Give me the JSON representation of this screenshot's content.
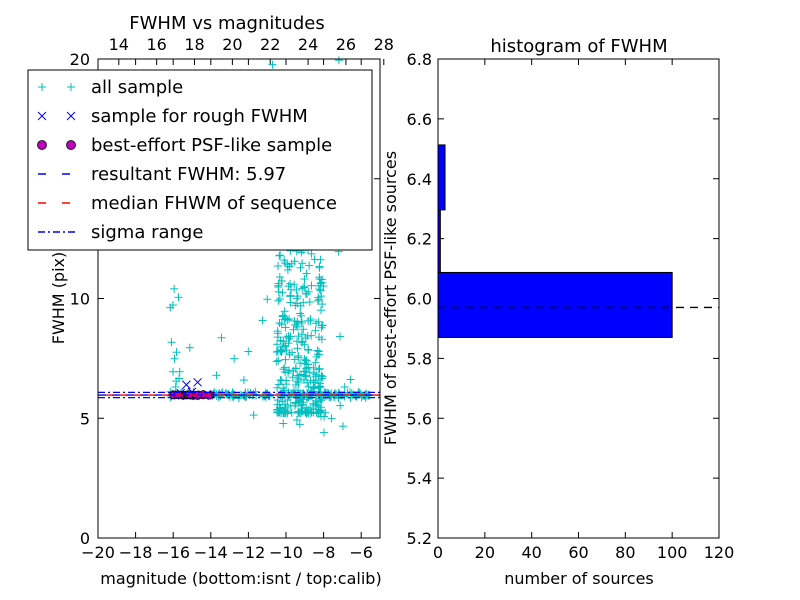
{
  "chart_data": [
    {
      "type": "scatter",
      "title": "FWHM vs magnitudes",
      "xlabel": "magnitude (bottom:isnt / top:calib)",
      "ylabel": "FWHM (pix)",
      "xlim": [
        -20,
        -5
      ],
      "ylim": [
        0,
        20
      ],
      "x_ticks": [
        "−20",
        "−18",
        "−16",
        "−14",
        "−12",
        "−10",
        "−8",
        "−6"
      ],
      "top_x_ticks": [
        "14",
        "16",
        "18",
        "20",
        "22",
        "24",
        "26",
        "28"
      ],
      "top_xlim": [
        12.9,
        27.8
      ],
      "y_ticks": [
        "0",
        "5",
        "10",
        "15",
        "20"
      ],
      "legend_position": "upper-left",
      "legend": [
        {
          "label": "all sample",
          "marker": "plus",
          "color": "#00bfbf"
        },
        {
          "label": "sample for rough FWHM",
          "marker": "x",
          "color": "#0000ff"
        },
        {
          "label": "best-effort PSF-like sample",
          "marker": "circle",
          "color": "#bf00bf"
        },
        {
          "label": "resultant FWHM: 5.97",
          "marker": "dashed",
          "color": "#0000ff"
        },
        {
          "label": "median FHWM of sequence",
          "marker": "dashed",
          "color": "#ff0000"
        },
        {
          "label": "sigma range",
          "marker": "dashdot",
          "color": "#0000ff"
        }
      ],
      "lines": {
        "resultant_fwhm": 5.97,
        "median_fwhm": 5.97,
        "sigma_range": [
          5.86,
          6.08
        ]
      },
      "series": [
        {
          "name": "all sample",
          "marker": "plus",
          "color": "#00bfbf",
          "clusters": [
            {
              "x_range": [
                -16.2,
                -5.5
              ],
              "y_mean": 5.98,
              "y_sd": 0.06,
              "count": 170
            },
            {
              "x_range": [
                -16.2,
                -15.6
              ],
              "y_range": [
                6.3,
                11.5
              ],
              "count": 12
            },
            {
              "x_range": [
                -15.2,
                -6.2
              ],
              "y_range": [
                6.3,
                20
              ],
              "count": 35
            },
            {
              "x_range": [
                -10.5,
                -8.0
              ],
              "y_range": [
                5.2,
                13.5
              ],
              "count": 340
            },
            {
              "x_range": [
                -10.0,
                -8.0
              ],
              "y_range": [
                13.5,
                19
              ],
              "count": 45
            },
            {
              "x_range": [
                -12.6,
                -6.0
              ],
              "y_range": [
                4.4,
                5.8
              ],
              "count": 12
            }
          ]
        },
        {
          "name": "sample for rough FWHM",
          "marker": "x",
          "color": "#0000ff",
          "points": [
            [
              -15.3,
              6.4
            ],
            [
              -14.7,
              6.5
            ],
            [
              -15.6,
              6.05
            ],
            [
              -15.0,
              6.1
            ],
            [
              -14.2,
              6.0
            ],
            [
              -15.9,
              5.95
            ]
          ]
        },
        {
          "name": "best-effort PSF-like sample",
          "marker": "circle",
          "color": "#bf00bf",
          "x_range": [
            -16.0,
            -14.0
          ],
          "y_mean": 5.97,
          "y_sd": 0.025,
          "count": 40
        }
      ]
    },
    {
      "type": "bar",
      "orientation": "horizontal",
      "title": "histogram of FWHM",
      "xlabel": "number of sources",
      "ylabel": "FWHM of best-effort PSF-like sources",
      "xlim": [
        0,
        120
      ],
      "ylim": [
        5.2,
        6.8
      ],
      "x_ticks": [
        "0",
        "20",
        "40",
        "60",
        "80",
        "100",
        "120"
      ],
      "y_ticks": [
        "5.2",
        "5.4",
        "5.6",
        "5.8",
        "6.0",
        "6.2",
        "6.4",
        "6.6",
        "6.8"
      ],
      "bin_edges": [
        5.87,
        6.087,
        6.296,
        6.513
      ],
      "counts": [
        100,
        1,
        3
      ],
      "bar_color": "#0000ff",
      "reference_line": 5.97
    }
  ]
}
